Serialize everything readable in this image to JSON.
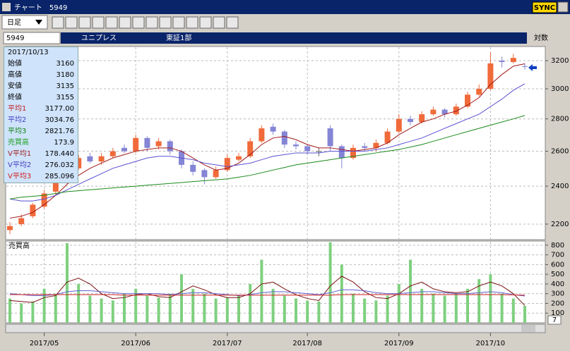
{
  "window": {
    "title": "チャート　5949",
    "sync": "SYNC"
  },
  "toolbar": {
    "period": "日足"
  },
  "header": {
    "code": "5949",
    "name": "ユニプレス",
    "market": "東証1部",
    "scale": "対数"
  },
  "info_panel": {
    "date": "2017/10/13",
    "rows": [
      {
        "label": "始値",
        "value": "3160"
      },
      {
        "label": "高値",
        "value": "3180"
      },
      {
        "label": "安値",
        "value": "3135"
      },
      {
        "label": "終値",
        "value": "3155"
      },
      {
        "label": "平均1",
        "value": "3177.00"
      },
      {
        "label": "平均2",
        "value": "3034.76"
      },
      {
        "label": "平均3",
        "value": "2821.76"
      },
      {
        "label": "売買高",
        "value": "173.9"
      },
      {
        "label": "V平均1",
        "value": "178.440"
      },
      {
        "label": "V平均2",
        "value": "276.032"
      },
      {
        "label": "V平均3",
        "value": "285.096"
      }
    ]
  },
  "pager": "7",
  "chart_data": [
    {
      "type": "candlestick",
      "log": true,
      "grid": true,
      "up_color": "#f06a3a",
      "down_color": "#8585d6",
      "categories": [
        null,
        null,
        null,
        "2017/05",
        null,
        null,
        null,
        null,
        null,
        null,
        null,
        "2017/06",
        null,
        null,
        null,
        null,
        null,
        null,
        null,
        "2017/07",
        null,
        null,
        null,
        null,
        null,
        null,
        "2017/08",
        null,
        null,
        null,
        null,
        null,
        null,
        null,
        "2017/09",
        null,
        null,
        null,
        null,
        null,
        null,
        null,
        "2017/10",
        null,
        null,
        null
      ],
      "open": [
        2170,
        2200,
        2240,
        2290,
        2370,
        2420,
        2500,
        2570,
        2540,
        2570,
        2620,
        2600,
        2680,
        2630,
        2660,
        2600,
        2520,
        2490,
        2450,
        2490,
        2550,
        2570,
        2660,
        2750,
        2720,
        2640,
        2630,
        2600,
        2740,
        2630,
        2560,
        2630,
        2620,
        2650,
        2720,
        2800,
        2780,
        2830,
        2860,
        2830,
        2880,
        2960,
        3000,
        3200,
        3190,
        3160
      ],
      "high": [
        2210,
        2250,
        2310,
        2380,
        2440,
        2520,
        2580,
        2590,
        2590,
        2620,
        2640,
        2700,
        2690,
        2680,
        2670,
        2610,
        2540,
        2500,
        2510,
        2580,
        2590,
        2680,
        2760,
        2770,
        2730,
        2660,
        2640,
        2620,
        2760,
        2640,
        2640,
        2650,
        2670,
        2740,
        2830,
        2820,
        2850,
        2880,
        2870,
        2900,
        2980,
        3030,
        3260,
        3230,
        3250,
        3180
      ],
      "low": [
        2150,
        2190,
        2230,
        2280,
        2350,
        2410,
        2490,
        2530,
        2520,
        2560,
        2590,
        2590,
        2600,
        2610,
        2580,
        2500,
        2460,
        2410,
        2440,
        2480,
        2540,
        2560,
        2650,
        2700,
        2620,
        2610,
        2580,
        2570,
        2600,
        2500,
        2550,
        2600,
        2600,
        2640,
        2710,
        2760,
        2770,
        2820,
        2810,
        2820,
        2870,
        2950,
        2990,
        3150,
        3180,
        3135
      ],
      "close": [
        2190,
        2230,
        2300,
        2360,
        2420,
        2500,
        2560,
        2540,
        2570,
        2600,
        2600,
        2680,
        2620,
        2660,
        2600,
        2520,
        2480,
        2450,
        2490,
        2560,
        2570,
        2660,
        2740,
        2720,
        2640,
        2630,
        2600,
        2600,
        2630,
        2560,
        2620,
        2620,
        2650,
        2720,
        2800,
        2780,
        2830,
        2860,
        2830,
        2880,
        2960,
        3000,
        3180,
        3190,
        3220,
        3155
      ],
      "series": [
        {
          "color": "#a01818",
          "values": [
            2230,
            2240,
            2260,
            2300,
            2350,
            2410,
            2460,
            2500,
            2530,
            2560,
            2580,
            2600,
            2610,
            2620,
            2620,
            2600,
            2560,
            2520,
            2490,
            2500,
            2530,
            2580,
            2640,
            2680,
            2690,
            2670,
            2640,
            2620,
            2620,
            2610,
            2600,
            2610,
            2620,
            2650,
            2700,
            2740,
            2780,
            2800,
            2830,
            2850,
            2890,
            2940,
            3030,
            3100,
            3160,
            3177
          ]
        },
        {
          "color": "#5a50d0",
          "values": [
            2330,
            2320,
            2320,
            2330,
            2350,
            2380,
            2410,
            2440,
            2470,
            2500,
            2520,
            2540,
            2560,
            2570,
            2570,
            2560,
            2550,
            2530,
            2520,
            2510,
            2520,
            2530,
            2550,
            2570,
            2580,
            2590,
            2590,
            2590,
            2600,
            2600,
            2600,
            2600,
            2610,
            2620,
            2640,
            2660,
            2680,
            2710,
            2740,
            2770,
            2800,
            2830,
            2880,
            2930,
            2990,
            3034.76
          ]
        },
        {
          "color": "#1a8a1a",
          "values": [
            2330,
            2340,
            2345,
            2350,
            2360,
            2370,
            2375,
            2380,
            2385,
            2390,
            2395,
            2400,
            2405,
            2410,
            2415,
            2420,
            2425,
            2430,
            2435,
            2440,
            2450,
            2460,
            2475,
            2490,
            2505,
            2520,
            2530,
            2540,
            2550,
            2560,
            2570,
            2580,
            2590,
            2600,
            2610,
            2625,
            2640,
            2660,
            2680,
            2700,
            2720,
            2740,
            2760,
            2780,
            2800,
            2821.76
          ]
        }
      ],
      "ylim": [
        2123,
        3300
      ],
      "yticks": [
        2200,
        2400,
        2600,
        2800,
        3000,
        3200
      ]
    },
    {
      "type": "bar",
      "title": "売買高",
      "color": "#7fd07f",
      "grid": true,
      "values": [
        250,
        200,
        220,
        350,
        300,
        820,
        400,
        280,
        250,
        230,
        300,
        350,
        280,
        260,
        300,
        500,
        350,
        300,
        250,
        260,
        280,
        400,
        650,
        350,
        280,
        250,
        230,
        220,
        830,
        600,
        300,
        250,
        230,
        280,
        400,
        650,
        350,
        300,
        280,
        300,
        350,
        450,
        500,
        300,
        250,
        173.9
      ],
      "series": [
        {
          "color": "#7a1010",
          "values": [
            230,
            220,
            210,
            260,
            280,
            420,
            460,
            400,
            300,
            250,
            260,
            290,
            300,
            270,
            260,
            320,
            380,
            340,
            290,
            260,
            260,
            300,
            400,
            420,
            350,
            290,
            250,
            230,
            380,
            480,
            420,
            320,
            260,
            250,
            300,
            380,
            420,
            350,
            320,
            310,
            320,
            380,
            420,
            380,
            300,
            178.44
          ]
        },
        {
          "color": "#6060d0",
          "values": [
            300,
            290,
            280,
            280,
            290,
            320,
            330,
            330,
            320,
            310,
            300,
            300,
            300,
            300,
            290,
            300,
            310,
            310,
            300,
            290,
            280,
            290,
            310,
            320,
            320,
            310,
            300,
            290,
            310,
            340,
            340,
            330,
            310,
            300,
            300,
            310,
            320,
            320,
            310,
            300,
            300,
            310,
            320,
            310,
            290,
            276.032
          ]
        },
        {
          "color": "#d02020",
          "values": [
            290,
            290,
            290,
            290,
            290,
            290,
            290,
            290,
            290,
            290,
            285,
            285,
            285,
            285,
            285,
            285,
            285,
            285,
            285,
            285,
            285,
            285,
            285,
            285,
            285,
            285,
            285,
            285,
            285,
            290,
            290,
            290,
            290,
            290,
            290,
            290,
            290,
            290,
            290,
            290,
            290,
            290,
            290,
            290,
            288,
            285.096
          ]
        }
      ],
      "ylim": [
        0,
        835
      ],
      "yticks": [
        100,
        200,
        300,
        400,
        500,
        600,
        700,
        800
      ]
    }
  ]
}
